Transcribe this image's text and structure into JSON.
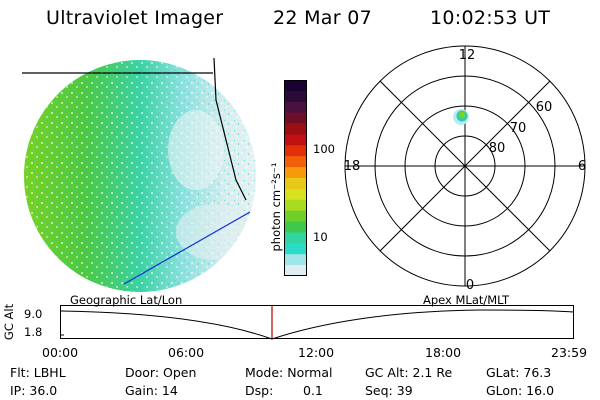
{
  "header": {
    "title": "Ultraviolet Imager",
    "date": "22 Mar 07",
    "time": "10:02:53 UT"
  },
  "colorbar": {
    "unit_label": "photon cm⁻²s⁻¹",
    "ticks": [
      "100",
      "10"
    ],
    "colors": [
      "#1a0033",
      "#2b0a3a",
      "#4a1040",
      "#6e0f2a",
      "#9b0f12",
      "#c01010",
      "#e0300a",
      "#f2600a",
      "#f59a0a",
      "#e8c81a",
      "#d8e020",
      "#a8dc20",
      "#70d02a",
      "#40c84a",
      "#30d6a0",
      "#2adcc8",
      "#9ee6e8",
      "#dfeef0"
    ]
  },
  "polar_plot": {
    "labels": {
      "top": "12",
      "bottom": "0",
      "left": "18",
      "right": "6",
      "lat60": "60",
      "lat70": "70",
      "lat80": "80"
    }
  },
  "timeline": {
    "y_axis_label": "GC Alt",
    "ticks": {
      "top": "9.0",
      "bottom": "1.8"
    },
    "left_title": "Geographic Lat/Lon",
    "right_title": "Apex MLat/MLT",
    "time_ticks": [
      "00:00",
      "06:00",
      "12:00",
      "18:00",
      "23:59"
    ]
  },
  "status": {
    "flt": "Flt: LBHL",
    "ip": "IP: 36.0",
    "door": "Door: Open",
    "gain": "Gain: 14",
    "mode": "Mode: Normal",
    "dsp_label": "Dsp:",
    "dsp_value": "0.1",
    "gc_alt": "GC Alt: 2.1 Re",
    "seq": "Seq: 39",
    "glat": "GLat: 76.3",
    "glon": "GLon: 16.0"
  }
}
